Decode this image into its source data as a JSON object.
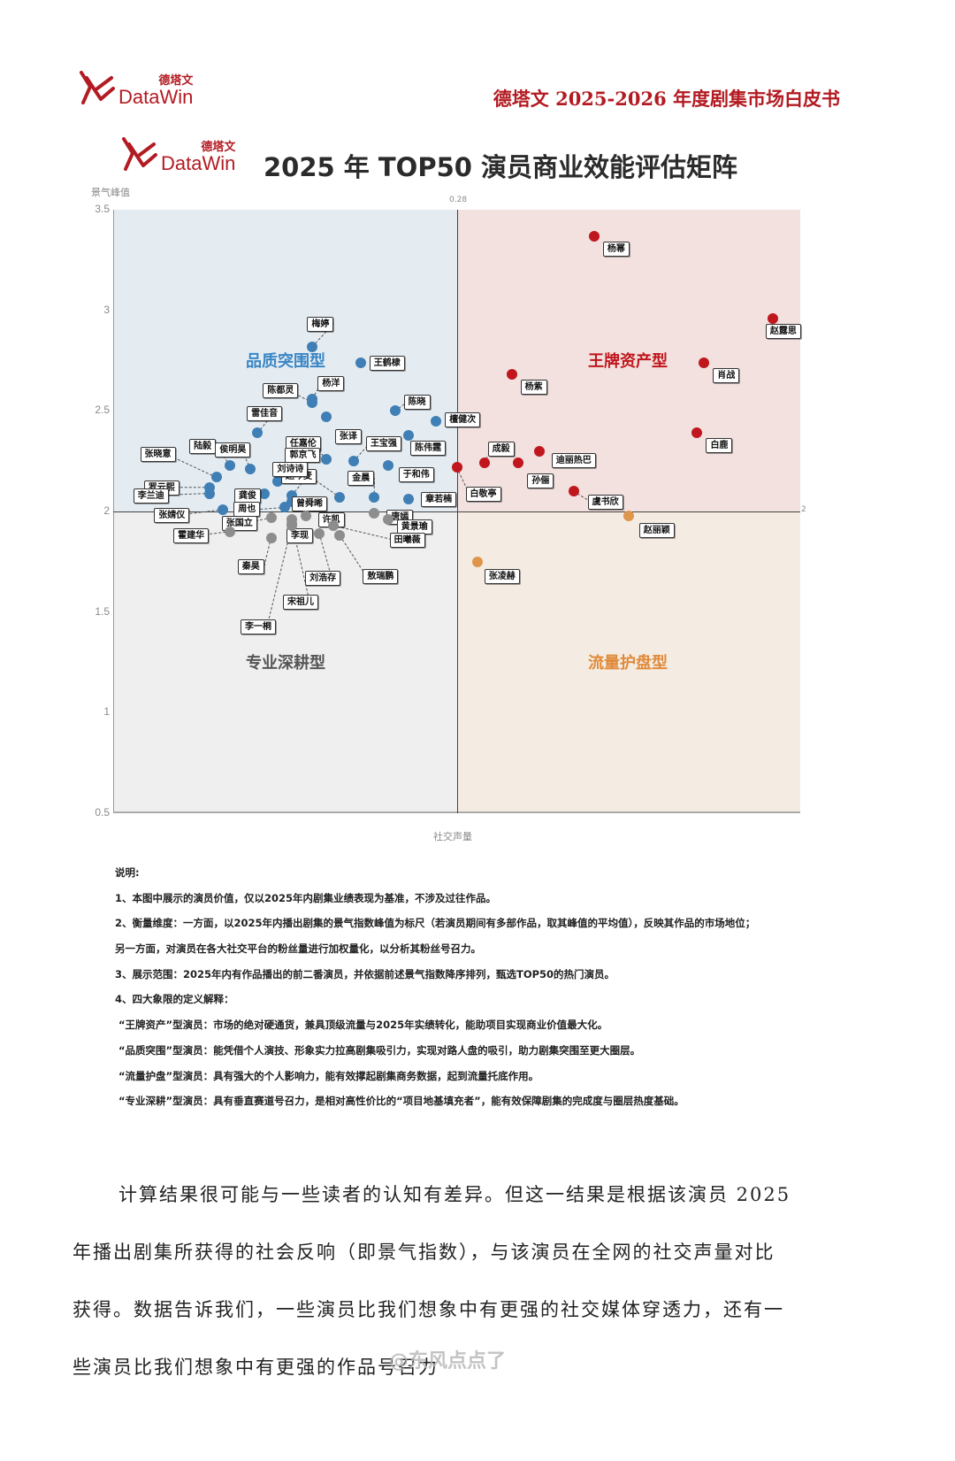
{
  "header": {
    "logo_cn": "德塔文",
    "logo_en": "DataWin",
    "doc_title": "德塔文 2025-2026 年度剧集市场白皮书"
  },
  "chart_title": "2025 年 TOP50 演员商业效能评估矩阵",
  "colors": {
    "brand_red": "#b31b22",
    "quadrant_top_left": "#e4ecf2",
    "quadrant_top_right": "#f2e1df",
    "quadrant_bottom_left": "#efefef",
    "quadrant_bottom_right": "#f4ece2",
    "dot_blue": "#3f7fb5",
    "dot_red": "#c0161d",
    "dot_grey": "#8d8d8d",
    "dot_orange": "#e0954d",
    "label_blue": "#3a86c5",
    "label_red": "#c0161d",
    "label_grey": "#555555",
    "label_orange": "#e08a3a"
  },
  "chart_data": {
    "type": "scatter",
    "title": "2025 年 TOP50 演员商业效能评估矩阵",
    "xlabel": "社交声量",
    "ylabel": "景气峰值",
    "ylim": [
      0.5,
      3.5
    ],
    "yticks": [
      "3.5",
      "3",
      "2.5",
      "2",
      "1.5",
      "1",
      "0.5"
    ],
    "x_divider_label": "0.28",
    "y_divider_label": "2",
    "grid": false,
    "legend": "none",
    "quadrants": [
      {
        "name": "品质突围型",
        "position": "top-left"
      },
      {
        "name": "王牌资产型",
        "position": "top-right"
      },
      {
        "name": "专业深耕型",
        "position": "bottom-left"
      },
      {
        "name": "流量护盘型",
        "position": "bottom-right"
      }
    ],
    "x_note": "x values are relative horizontal positions (0 = left edge, 0.5 = divider at 0.28, 1 = right edge); no x tick labels shown",
    "series": [
      {
        "name": "王牌资产型",
        "color": "#c0161d",
        "points": [
          {
            "name": "杨幂",
            "x": 0.7,
            "y": 3.37
          },
          {
            "name": "赵露思",
            "x": 0.96,
            "y": 2.96
          },
          {
            "name": "肖战",
            "x": 0.86,
            "y": 2.74
          },
          {
            "name": "杨紫",
            "x": 0.58,
            "y": 2.68
          },
          {
            "name": "白鹿",
            "x": 0.85,
            "y": 2.39
          },
          {
            "name": "成毅",
            "x": 0.54,
            "y": 2.24
          },
          {
            "name": "迪丽热巴",
            "x": 0.62,
            "y": 2.3
          },
          {
            "name": "孙俪",
            "x": 0.59,
            "y": 2.24
          },
          {
            "name": "白敬亭",
            "x": 0.5,
            "y": 2.22
          },
          {
            "name": "虞书欣",
            "x": 0.67,
            "y": 2.1
          }
        ]
      },
      {
        "name": "品质突围型",
        "color": "#3f7fb5",
        "points": [
          {
            "name": "梅婷",
            "x": 0.29,
            "y": 2.82
          },
          {
            "name": "王鹤棣",
            "x": 0.36,
            "y": 2.74
          },
          {
            "name": "杨洋",
            "x": 0.29,
            "y": 2.56
          },
          {
            "name": "陈都灵",
            "x": 0.29,
            "y": 2.54
          },
          {
            "name": "陈晓",
            "x": 0.41,
            "y": 2.5
          },
          {
            "name": "张译",
            "x": 0.31,
            "y": 2.47
          },
          {
            "name": "檀健次",
            "x": 0.47,
            "y": 2.45
          },
          {
            "name": "雷佳音",
            "x": 0.21,
            "y": 2.39
          },
          {
            "name": "陈伟霆",
            "x": 0.43,
            "y": 2.38
          },
          {
            "name": "王宝强",
            "x": 0.35,
            "y": 2.25
          },
          {
            "name": "于和伟",
            "x": 0.4,
            "y": 2.23
          },
          {
            "name": "任嘉伦",
            "x": 0.31,
            "y": 2.26
          },
          {
            "name": "陆毅",
            "x": 0.17,
            "y": 2.23
          },
          {
            "name": "侯明昊",
            "x": 0.2,
            "y": 2.21
          },
          {
            "name": "郭京飞",
            "x": 0.24,
            "y": 2.15
          },
          {
            "name": "张晓意",
            "x": 0.15,
            "y": 2.17
          },
          {
            "name": "罗云熙",
            "x": 0.14,
            "y": 2.12
          },
          {
            "name": "赵今麦",
            "x": 0.26,
            "y": 2.08
          },
          {
            "name": "刘诗诗",
            "x": 0.33,
            "y": 2.07
          },
          {
            "name": "金晨",
            "x": 0.38,
            "y": 2.07
          },
          {
            "name": "章若楠",
            "x": 0.43,
            "y": 2.06
          },
          {
            "name": "龚俊",
            "x": 0.22,
            "y": 2.09
          },
          {
            "name": "曾舜晞",
            "x": 0.26,
            "y": 2.05
          },
          {
            "name": "李兰迪",
            "x": 0.14,
            "y": 2.09
          },
          {
            "name": "张婧仪",
            "x": 0.16,
            "y": 2.01
          },
          {
            "name": "周也",
            "x": 0.25,
            "y": 2.02
          }
        ]
      },
      {
        "name": "流量护盘型",
        "color": "#e0954d",
        "points": [
          {
            "name": "赵丽颖",
            "x": 0.75,
            "y": 1.98
          },
          {
            "name": "张凌赫",
            "x": 0.53,
            "y": 1.75
          }
        ]
      },
      {
        "name": "专业深耕型",
        "color": "#8d8d8d",
        "points": [
          {
            "name": "许凯",
            "x": 0.28,
            "y": 1.98
          },
          {
            "name": "唐嫣",
            "x": 0.38,
            "y": 1.99
          },
          {
            "name": "黄景瑜",
            "x": 0.4,
            "y": 1.96
          },
          {
            "name": "张国立",
            "x": 0.23,
            "y": 1.97
          },
          {
            "name": "李现",
            "x": 0.26,
            "y": 1.96
          },
          {
            "name": "田曦薇",
            "x": 0.32,
            "y": 1.93
          },
          {
            "name": "霍建华",
            "x": 0.17,
            "y": 1.9
          },
          {
            "name": "秦昊",
            "x": 0.23,
            "y": 1.87
          },
          {
            "name": "刘浩存",
            "x": 0.3,
            "y": 1.89
          },
          {
            "name": "敖瑞鹏",
            "x": 0.33,
            "y": 1.88
          },
          {
            "name": "宋祖儿",
            "x": 0.26,
            "y": 1.94
          },
          {
            "name": "李一桐",
            "x": 0.26,
            "y": 1.93
          }
        ]
      }
    ]
  },
  "notes": {
    "heading": "说明:",
    "items": [
      "1、本图中展示的演员价值，仅以2025年内剧集业绩表现为基准，不涉及过往作品。",
      "2、衡量维度：一方面，以2025年内播出剧集的景气指数峰值为标尺（若演员期间有多部作品，取其峰值的平均值），反映其作品的市场地位；",
      "另一方面，对演员在各大社交平台的粉丝量进行加权量化，以分析其粉丝号召力。",
      "3、展示范围：2025年内有作品播出的前二番演员，并依据前述景气指数降序排列，甄选TOP50的热门演员。",
      "4、四大象限的定义解释：",
      "“王牌资产”型演员：市场的绝对硬通货，兼具顶级流量与2025年实绩转化，能助项目实现商业价值最大化。",
      "“品质突围”型演员：能凭借个人演技、形象实力拉高剧集吸引力，实现对路人盘的吸引，助力剧集突围至更大圈层。",
      "“流量护盘”型演员：具有强大的个人影响力，能有效撑起剧集商务数据，起到流量托底作用。",
      "“专业深耕”型演员：具有垂直赛道号召力，是相对高性价比的“项目地基填充者”，能有效保障剧集的完成度与圈层热度基础。"
    ]
  },
  "body": {
    "paragraph": [
      "计算结果很可能与一些读者的认知有差异。但这一结果是根据该演员 2025",
      "年播出剧集所获得的社会反响（即景气指数），与该演员在全网的社交声量对比",
      "获得。数据告诉我们，一些演员比我们想象中有更强的社交媒体穿透力，还有一",
      "些演员比我们想象中有更强的作品号召力"
    ],
    "watermark": "@东风点点了"
  }
}
